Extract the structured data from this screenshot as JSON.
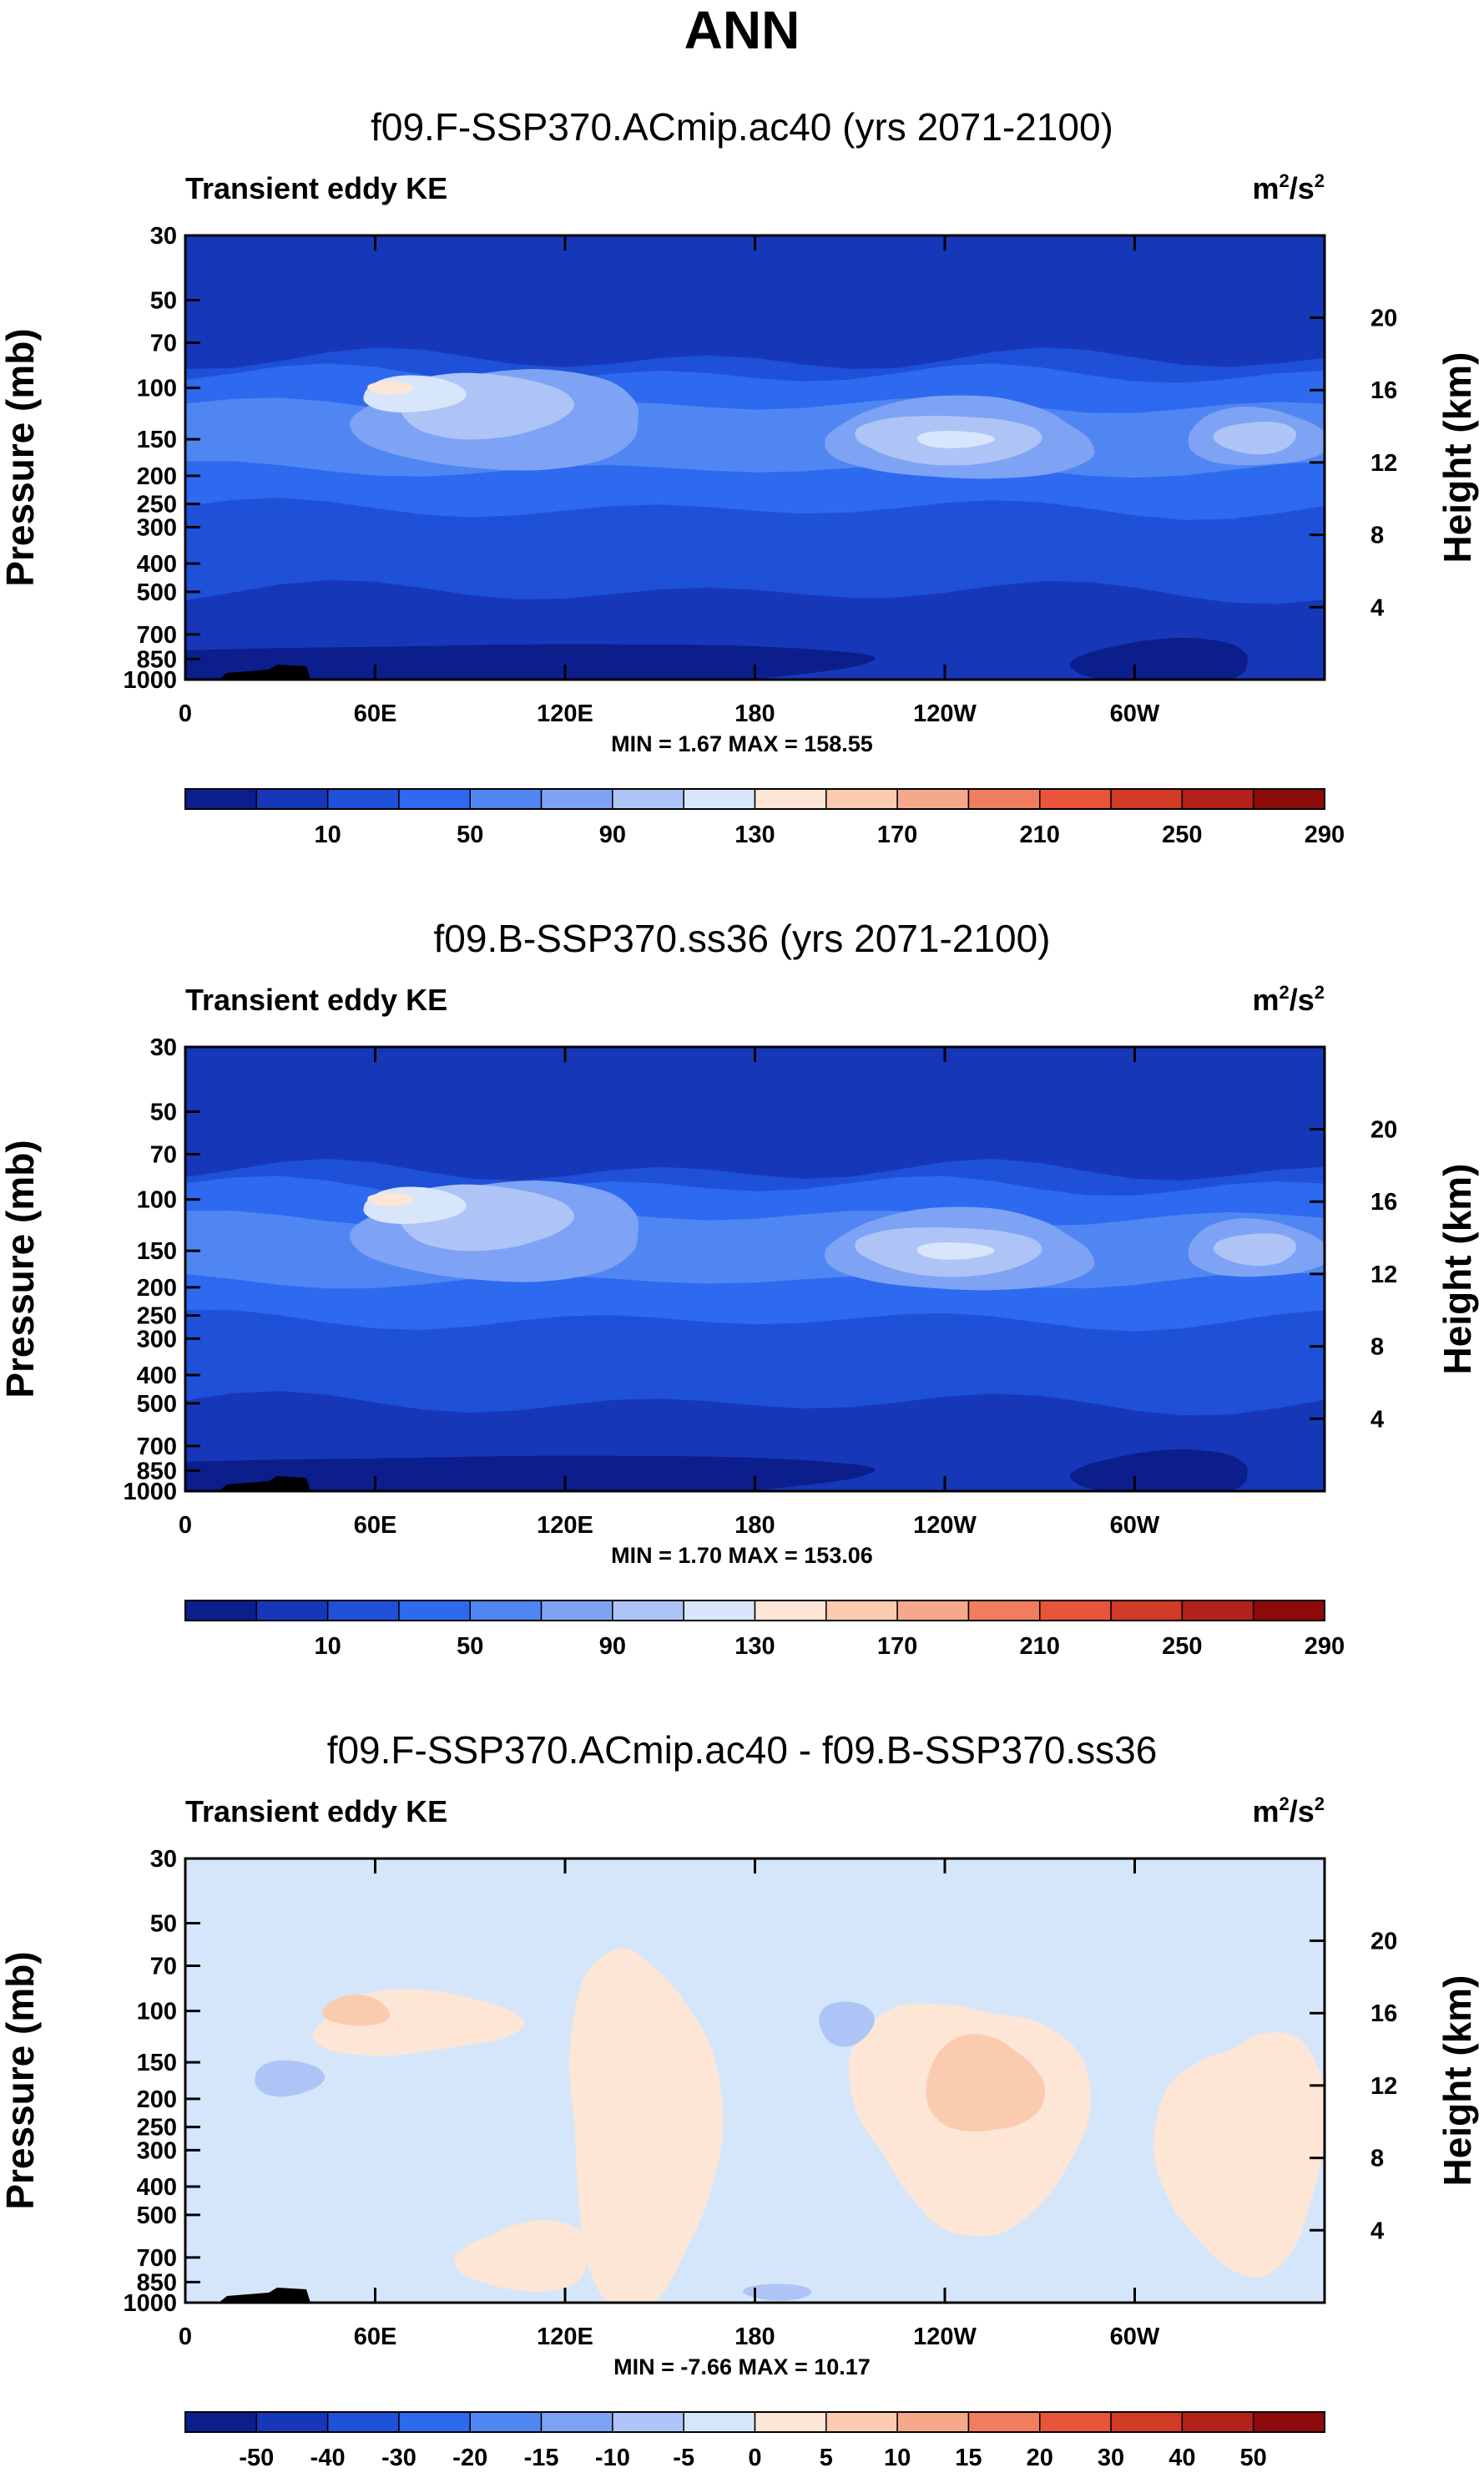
{
  "figure": {
    "title": "ANN"
  },
  "chart_data": [
    {
      "type": "contour",
      "subtitle": "f09.F-SSP370.ACmip.ac40 (yrs 2071-2100)",
      "title": "Transient eddy KE",
      "units": {
        "base": "m",
        "exp": "2",
        "sep": "/s",
        "exp2": "2"
      },
      "ylabel": "Pressure (mb)",
      "ylabel_right": "Height (km)",
      "yticks": [
        "30",
        "50",
        "70",
        "100",
        "150",
        "200",
        "250",
        "300",
        "400",
        "500",
        "700",
        "850",
        "1000"
      ],
      "yticks_right": [
        "20",
        "16",
        "12",
        "8",
        "4"
      ],
      "xticks": [
        "0",
        "60E",
        "120E",
        "180",
        "120W",
        "60W"
      ],
      "stats": "MIN =   1.67   MAX = 158.55",
      "colorbar_labels": [
        "10",
        "50",
        "90",
        "130",
        "170",
        "210",
        "250",
        "290"
      ],
      "colorbar_colors": [
        "#0b1e8c",
        "#1638b8",
        "#1f50d8",
        "#2e6af0",
        "#4f86f2",
        "#7ea3f4",
        "#aec4f7",
        "#d8e6fb",
        "#fde6d6",
        "#fbcbb0",
        "#f6a98a",
        "#f07e5e",
        "#e8553a",
        "#d13a24",
        "#b2221a",
        "#8c0a0a"
      ],
      "field_levels": [
        {
          "value": 158.55
        }
      ]
    },
    {
      "type": "contour",
      "subtitle": "f09.B-SSP370.ss36 (yrs 2071-2100)",
      "title": "Transient eddy KE",
      "units": {
        "base": "m",
        "exp": "2",
        "sep": "/s",
        "exp2": "2"
      },
      "ylabel": "Pressure (mb)",
      "ylabel_right": "Height (km)",
      "yticks": [
        "30",
        "50",
        "70",
        "100",
        "150",
        "200",
        "250",
        "300",
        "400",
        "500",
        "700",
        "850",
        "1000"
      ],
      "yticks_right": [
        "20",
        "16",
        "12",
        "8",
        "4"
      ],
      "xticks": [
        "0",
        "60E",
        "120E",
        "180",
        "120W",
        "60W"
      ],
      "stats": "MIN =   1.70   MAX = 153.06",
      "colorbar_labels": [
        "10",
        "50",
        "90",
        "130",
        "170",
        "210",
        "250",
        "290"
      ],
      "colorbar_colors": [
        "#0b1e8c",
        "#1638b8",
        "#1f50d8",
        "#2e6af0",
        "#4f86f2",
        "#7ea3f4",
        "#aec4f7",
        "#d8e6fb",
        "#fde6d6",
        "#fbcbb0",
        "#f6a98a",
        "#f07e5e",
        "#e8553a",
        "#d13a24",
        "#b2221a",
        "#8c0a0a"
      ],
      "field_levels": [
        {
          "value": 153.06
        }
      ]
    },
    {
      "type": "contour",
      "subtitle": "f09.F-SSP370.ACmip.ac40 - f09.B-SSP370.ss36",
      "title": "Transient eddy KE",
      "units": {
        "base": "m",
        "exp": "2",
        "sep": "/s",
        "exp2": "2"
      },
      "ylabel": "Pressure (mb)",
      "ylabel_right": "Height (km)",
      "yticks": [
        "30",
        "50",
        "70",
        "100",
        "150",
        "200",
        "250",
        "300",
        "400",
        "500",
        "700",
        "850",
        "1000"
      ],
      "yticks_right": [
        "20",
        "16",
        "12",
        "8",
        "4"
      ],
      "xticks": [
        "0",
        "60E",
        "120E",
        "180",
        "120W",
        "60W"
      ],
      "stats": "MIN =  -7.66   MAX =  10.17",
      "colorbar_labels": [
        "-50",
        "-40",
        "-30",
        "-20",
        "-15",
        "-10",
        "-5",
        "0",
        "5",
        "10",
        "15",
        "20",
        "30",
        "40",
        "50"
      ],
      "colorbar_colors": [
        "#0b1e8c",
        "#1638b8",
        "#1f50d8",
        "#2e6af0",
        "#4f86f2",
        "#7ea3f4",
        "#aec4f7",
        "#d6e6fa",
        "#fde6d6",
        "#fbcbb0",
        "#f6a98a",
        "#f07e5e",
        "#e8553a",
        "#d13a24",
        "#b2221a",
        "#8c0a0a"
      ],
      "field_levels": [
        {
          "value": 10.17
        }
      ]
    }
  ]
}
